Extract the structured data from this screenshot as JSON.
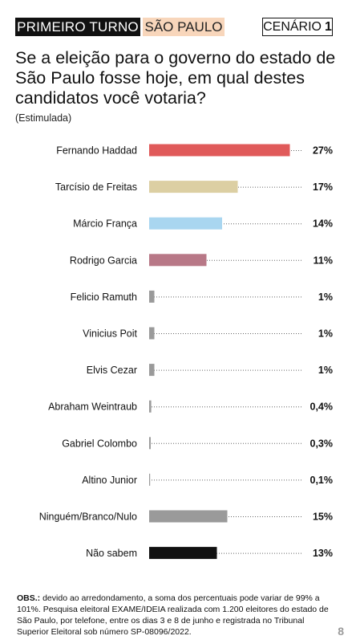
{
  "header": {
    "round_label": "PRIMEIRO TURNO",
    "state_label": "SÃO PAULO",
    "scenario_label": "CENÁRIO",
    "scenario_number": "1"
  },
  "question": "Se a eleição para o governo do estado de São Paulo fosse hoje, em qual destes candidatos você votaria?",
  "subtitle": "(Estimulada)",
  "chart_data": {
    "type": "bar",
    "orientation": "horizontal",
    "categories": [
      "Fernando Haddad",
      "Tarcísio de Freitas",
      "Márcio França",
      "Rodrigo Garcia",
      "Felicio Ramuth",
      "Vinicius Poit",
      "Elvis Cezar",
      "Abraham Weintraub",
      "Gabriel Colombo",
      "Altino Junior",
      "Ninguém/Branco/Nulo",
      "Não sabem"
    ],
    "values": [
      27,
      17,
      14,
      11,
      1,
      1,
      1,
      0.4,
      0.3,
      0.1,
      15,
      13
    ],
    "value_labels": [
      "27%",
      "17%",
      "14%",
      "11%",
      "1%",
      "1%",
      "1%",
      "0,4%",
      "0,3%",
      "0,1%",
      "15%",
      "13%"
    ],
    "colors": [
      "#e05a5a",
      "#dccfa3",
      "#a9d6f0",
      "#b87887",
      "#9a9a9a",
      "#9a9a9a",
      "#9a9a9a",
      "#9a9a9a",
      "#9a9a9a",
      "#9a9a9a",
      "#9a9a9a",
      "#111111"
    ],
    "unit": "%",
    "gridlines": "dotted leader lines"
  },
  "note": {
    "label": "OBS.:",
    "text": " devido ao arredondamento, a soma dos percentuais pode variar de 99% a 101%. Pesquisa eleitoral EXAME/IDEIA realizada com 1.200 eleitores do estado de São Paulo, por telefone, entre os dias 3 e 8 de junho e registrada no Tribunal Superior Eleitoral sob número SP-08096/2022."
  },
  "page_number": "8"
}
